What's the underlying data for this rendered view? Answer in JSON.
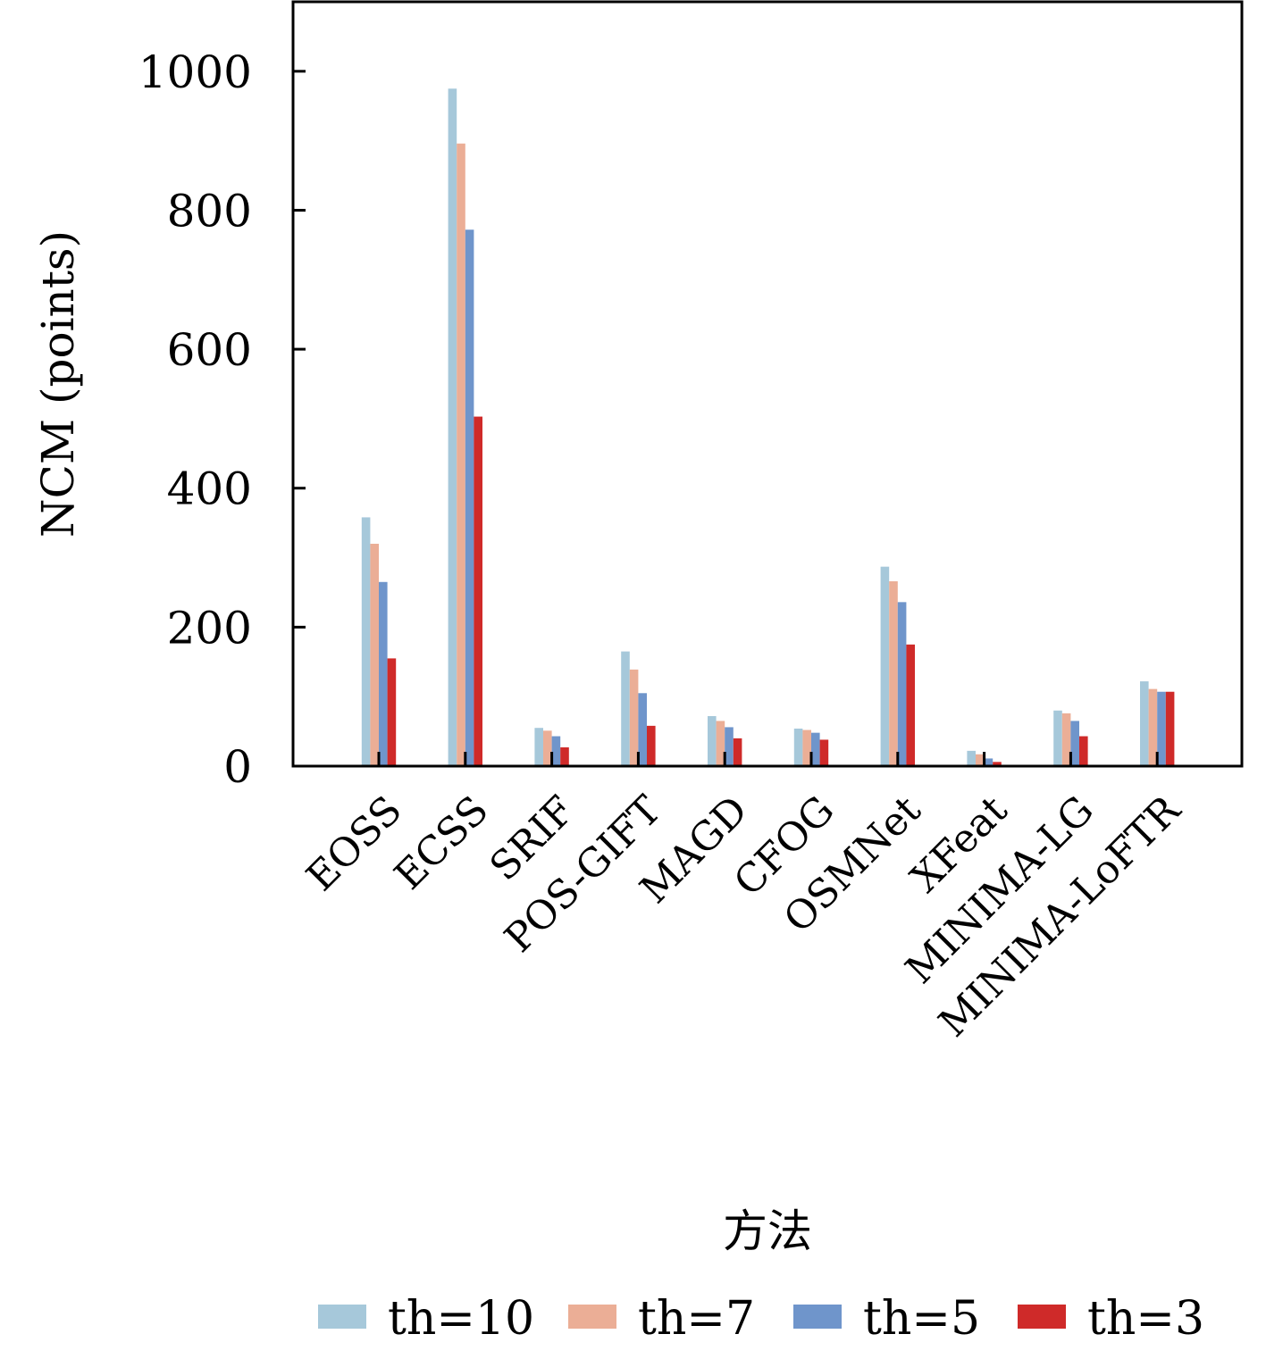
{
  "chart_data": {
    "type": "bar",
    "title": "",
    "xlabel": "方法",
    "ylabel": "NCM (points)",
    "ylim": [
      0,
      1100
    ],
    "yticks": [
      0,
      200,
      400,
      600,
      800,
      1000
    ],
    "grid": false,
    "legend_position": "bottom",
    "categories": [
      "EOSS",
      "ECSS",
      "SRIF",
      "POS-GIFT",
      "MAGD",
      "CFOG",
      "OSMNet",
      "XFeat",
      "MINIMA-LG",
      "MINIMA-LoFTR"
    ],
    "series": [
      {
        "name": "th=10",
        "color": "#a6c8da",
        "values": [
          358,
          975,
          55,
          165,
          72,
          54,
          287,
          22,
          80,
          122
        ]
      },
      {
        "name": "th=7",
        "color": "#ebae96",
        "values": [
          320,
          896,
          51,
          139,
          65,
          52,
          266,
          17,
          76,
          111
        ]
      },
      {
        "name": "th=5",
        "color": "#6f95cb",
        "values": [
          265,
          772,
          43,
          105,
          56,
          48,
          236,
          11,
          65,
          107
        ]
      },
      {
        "name": "th=3",
        "color": "#cf2a29",
        "values": [
          155,
          503,
          27,
          58,
          40,
          38,
          175,
          6,
          43,
          107
        ]
      }
    ]
  }
}
